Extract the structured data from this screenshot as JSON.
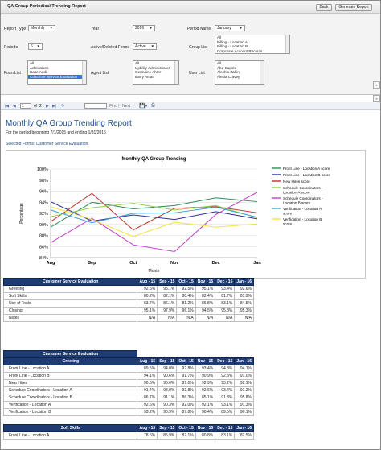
{
  "window": {
    "title": "QA Group Periodical Trending Report",
    "back": "Back",
    "generate": "Generate Report"
  },
  "params": {
    "report_type_label": "Report Type",
    "report_type": "Monthly",
    "year_label": "Year",
    "year": "2016",
    "period_name_label": "Period Name",
    "period_name": "January",
    "periods_label": "Periods",
    "periods": "6",
    "active_label": "Active/Deleted Forms",
    "active": "Active",
    "group_list_label": "Group List",
    "group_list": [
      "All",
      "Billing - Location A",
      "Billing - Location B",
      "Corporate Account Records"
    ],
    "form_list_label": "Form List",
    "form_list": [
      "All",
      "Admissions",
      "Case Audit",
      "Customer Service Evaluation"
    ],
    "agent_list_label": "Agent List",
    "agent_list": [
      "All",
      "Upbility Administrator",
      "Germaine Ahrer",
      "Barry Aman"
    ],
    "user_list_label": "User List",
    "user_list": [
      "All",
      "Abe Capote",
      "Aleshia Zahin",
      "Alesia Cravey"
    ]
  },
  "toolbar": {
    "page": "1",
    "of": "of",
    "total": "2",
    "find": "Find",
    "next": "Next",
    "sep": "|"
  },
  "report": {
    "title": "Monthly QA Group Trending Report",
    "period": "For the period beginning 7/1/2015 and ending 1/31/2016",
    "selected": "Selected Forms: Customer Service Evaluation"
  },
  "chart_data": {
    "type": "line",
    "title": "Monthly QA Group Trending",
    "xlabel": "Month",
    "ylabel": "Percentage",
    "categories": [
      "Aug",
      "Sep",
      "Oct",
      "Nov",
      "Dec",
      "Jan"
    ],
    "ylim": [
      84,
      100
    ],
    "yticks": [
      "84%",
      "86%",
      "88%",
      "90%",
      "92%",
      "94%",
      "96%",
      "98%",
      "100%"
    ],
    "legend_position": "right",
    "series": [
      {
        "name": "Front Line - Location A score",
        "color": "#2e8b57",
        "values": [
          89.5,
          94.0,
          92.8,
          93.4,
          94.8,
          94.1
        ]
      },
      {
        "name": "Front Line - Location B score",
        "color": "#2b2f9a",
        "values": [
          94.1,
          90.6,
          91.7,
          90.9,
          92.3,
          91.0
        ]
      },
      {
        "name": "New Hires score",
        "color": "#c03030",
        "values": [
          90.5,
          95.6,
          89.0,
          92.9,
          93.2,
          92.1
        ]
      },
      {
        "name": "Schedule Coordinators - Location A score",
        "color": "#8fd14f",
        "values": [
          91.4,
          93.0,
          93.8,
          92.6,
          93.4,
          91.2
        ]
      },
      {
        "name": "Schedule Coordinators - Location B score",
        "color": "#c040c8",
        "values": [
          86.7,
          91.1,
          86.3,
          85.1,
          91.8,
          95.8
        ]
      },
      {
        "name": "Verification - Location A score",
        "color": "#3aa0d6",
        "values": [
          92.6,
          90.3,
          92.0,
          92.1,
          93.1,
          91.3
        ]
      },
      {
        "name": "Verification - Location B score",
        "color": "#f2e23a",
        "values": [
          93.2,
          90.9,
          87.8,
          90.4,
          89.5,
          90.1
        ]
      }
    ]
  },
  "table1": {
    "title": "Customer Service Evaluation",
    "months": [
      "Aug - 15",
      "Sep - 15",
      "Oct - 15",
      "Nov - 15",
      "Dec - 15",
      "Jan - 16"
    ],
    "rows": [
      {
        "name": "Greeting",
        "v": [
          "92.5%",
          "95.1%",
          "92.5%",
          "95.1%",
          "93.4%",
          "92.6%"
        ]
      },
      {
        "name": "Soft Skills",
        "v": [
          "80.2%",
          "82.1%",
          "80.4%",
          "82.4%",
          "81.7%",
          "81.9%"
        ]
      },
      {
        "name": "Use of Tools",
        "v": [
          "83.7%",
          "86.1%",
          "81.2%",
          "86.8%",
          "83.1%",
          "84.5%"
        ]
      },
      {
        "name": "Closing",
        "v": [
          "95.1%",
          "97.9%",
          "96.1%",
          "94.5%",
          "95.8%",
          "95.3%"
        ]
      },
      {
        "name": "Notes",
        "v": [
          "N/A",
          "N/A",
          "N/A",
          "N/A",
          "N/A",
          "N/A"
        ]
      }
    ]
  },
  "table2": {
    "title": "Customer Service Evaluation",
    "section": "Greeting",
    "rows": [
      {
        "name": "Front Line - Location A",
        "v": [
          "89.5%",
          "94.0%",
          "92.8%",
          "93.4%",
          "94.8%",
          "94.1%"
        ]
      },
      {
        "name": "Front Line - Location B",
        "v": [
          "94.1%",
          "90.6%",
          "91.7%",
          "90.9%",
          "92.3%",
          "91.0%"
        ]
      },
      {
        "name": "New Hires",
        "v": [
          "90.5%",
          "95.6%",
          "89.0%",
          "92.9%",
          "93.2%",
          "92.1%"
        ]
      },
      {
        "name": "Schedule Coordinators - Location A",
        "v": [
          "91.4%",
          "93.0%",
          "93.8%",
          "92.6%",
          "93.4%",
          "91.2%"
        ]
      },
      {
        "name": "Schedule Coordinators - Location B",
        "v": [
          "86.7%",
          "91.1%",
          "86.3%",
          "85.1%",
          "91.8%",
          "95.8%"
        ]
      },
      {
        "name": "Verification - Location A",
        "v": [
          "92.6%",
          "90.3%",
          "92.0%",
          "92.1%",
          "93.1%",
          "91.3%"
        ]
      },
      {
        "name": "Verification - Location B",
        "v": [
          "93.2%",
          "90.9%",
          "87.8%",
          "90.4%",
          "89.5%",
          "90.1%"
        ]
      }
    ],
    "section2": "Soft Skills",
    "rows2": [
      {
        "name": "Front Line - Location A",
        "v": [
          "78.6%",
          "85.9%",
          "82.1%",
          "80.8%",
          "83.1%",
          "82.5%"
        ]
      }
    ]
  }
}
